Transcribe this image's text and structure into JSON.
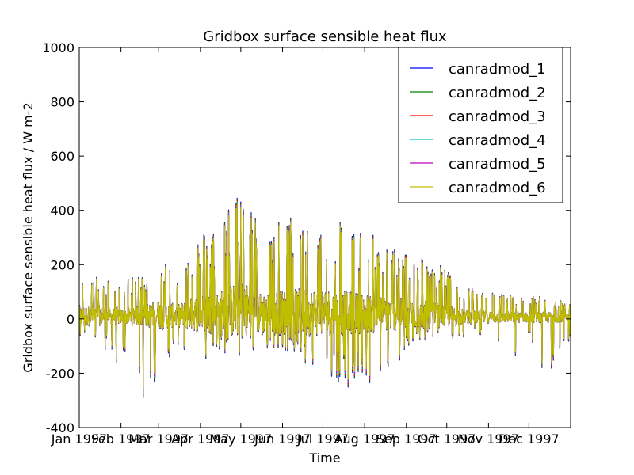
{
  "chart_data": {
    "type": "line",
    "title": "Gridbox surface sensible heat flux",
    "xlabel": "Time",
    "ylabel": "Gridbox surface sensible heat flux / W m-2",
    "ylim": [
      -400,
      1000
    ],
    "yticks": [
      -400,
      -200,
      0,
      200,
      400,
      600,
      800,
      1000
    ],
    "xlim": [
      "1997-01-01",
      "1998-01-01"
    ],
    "xticks": [
      {
        "date": "1997-01-01",
        "label": "Jan 1997"
      },
      {
        "date": "1997-02-01",
        "label": "Feb 1997"
      },
      {
        "date": "1997-03-01",
        "label": "Mar 1997"
      },
      {
        "date": "1997-04-01",
        "label": "Apr 1997"
      },
      {
        "date": "1997-05-01",
        "label": "May 1997"
      },
      {
        "date": "1997-06-01",
        "label": "Jun 1997"
      },
      {
        "date": "1997-07-01",
        "label": "Jul 1997"
      },
      {
        "date": "1997-08-01",
        "label": "Aug 1997"
      },
      {
        "date": "1997-09-01",
        "label": "Sep 1997"
      },
      {
        "date": "1997-10-01",
        "label": "Oct 1997"
      },
      {
        "date": "1997-11-01",
        "label": "Nov 1997"
      },
      {
        "date": "1997-12-01",
        "label": "Dec 1997"
      }
    ],
    "grid": false,
    "legend_position": "top-right",
    "x_dates": [
      "1997-01-01",
      "1997-01-15",
      "1997-02-01",
      "1997-02-15",
      "1997-03-01",
      "1997-03-15",
      "1997-04-01",
      "1997-04-15",
      "1997-05-01",
      "1997-05-15",
      "1997-06-01",
      "1997-06-15",
      "1997-07-01",
      "1997-07-15",
      "1997-08-01",
      "1997-08-15",
      "1997-09-01",
      "1997-09-15",
      "1997-10-01",
      "1997-10-15",
      "1997-11-01",
      "1997-11-15",
      "1997-12-01",
      "1997-12-15",
      "1997-12-31"
    ],
    "daily_max_envelope": [
      170,
      150,
      130,
      160,
      230,
      180,
      300,
      340,
      490,
      330,
      360,
      370,
      380,
      360,
      310,
      280,
      240,
      220,
      180,
      120,
      100,
      90,
      80,
      90,
      60
    ],
    "daily_min_envelope": [
      -60,
      -80,
      -170,
      -330,
      -190,
      -100,
      -170,
      -120,
      -150,
      -90,
      -130,
      -150,
      -200,
      -230,
      -210,
      -270,
      -100,
      -80,
      -70,
      -60,
      -50,
      -210,
      -50,
      -210,
      -70
    ],
    "series": [
      {
        "name": "canradmod_1",
        "color": "#0000ff"
      },
      {
        "name": "canradmod_2",
        "color": "#008000"
      },
      {
        "name": "canradmod_3",
        "color": "#ff0000"
      },
      {
        "name": "canradmod_4",
        "color": "#00bfbf"
      },
      {
        "name": "canradmod_5",
        "color": "#bf00bf"
      },
      {
        "name": "canradmod_6",
        "color": "#bfbf00"
      }
    ]
  }
}
